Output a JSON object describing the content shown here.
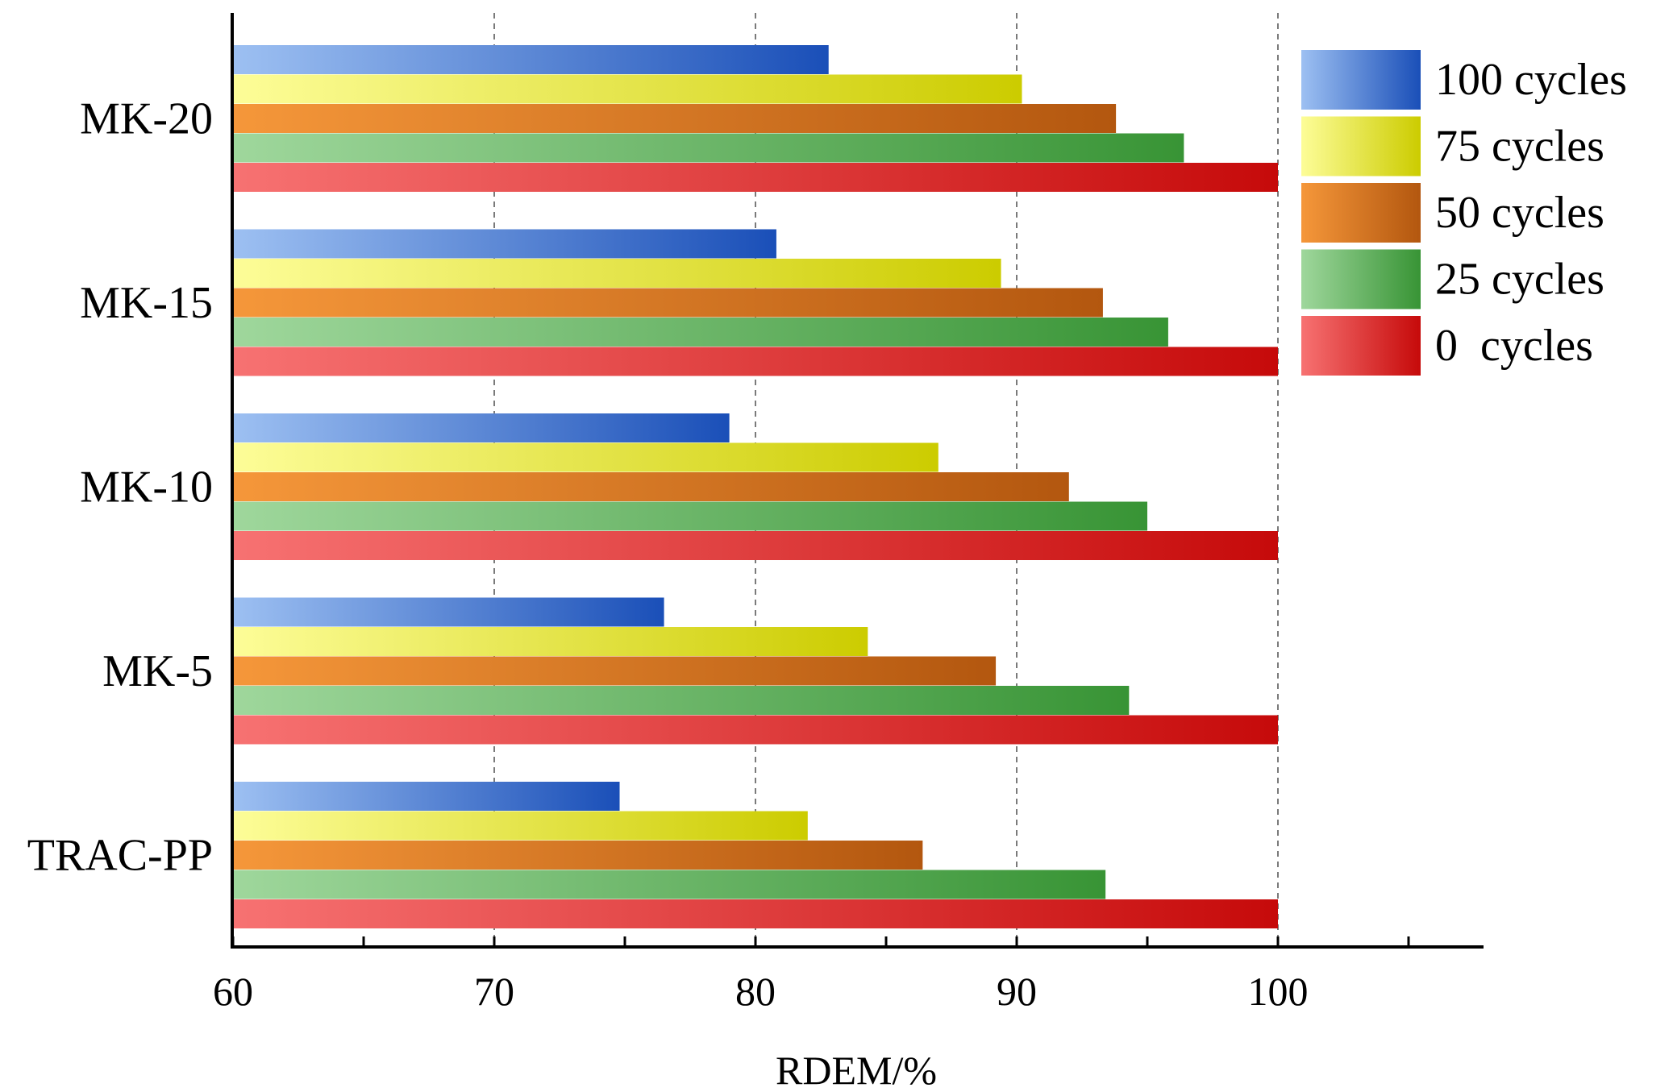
{
  "chart_data": {
    "type": "bar",
    "orientation": "horizontal",
    "title": "",
    "xlabel": "RDEM/%",
    "ylabel": "",
    "xlim": [
      60,
      107.5
    ],
    "x_ticks": [
      60,
      70,
      80,
      90,
      100
    ],
    "x_minor_ticks": [
      65,
      75,
      85,
      95,
      105
    ],
    "grid": "vertical dashed at major ticks",
    "legend_position": "top-right",
    "categories": [
      "MK-20",
      "MK-15",
      "MK-10",
      "MK-5",
      "TRAC-PP"
    ],
    "series": [
      {
        "name": "100 cycles",
        "legend_label": "100 cycles",
        "color_light": "#9dc0f2",
        "color_dark": "#1a4fb8",
        "values": [
          82.8,
          80.8,
          79.0,
          76.5,
          74.8
        ]
      },
      {
        "name": "75 cycles",
        "legend_label": "75 cycles",
        "color_light": "#fdfd98",
        "color_dark": "#cccc00",
        "values": [
          90.2,
          89.4,
          87.0,
          84.3,
          82.0
        ]
      },
      {
        "name": "50 cycles",
        "legend_label": "50 cycles",
        "color_light": "#f5973a",
        "color_dark": "#b3570f",
        "values": [
          93.8,
          93.3,
          92.0,
          89.2,
          86.4
        ]
      },
      {
        "name": "25 cycles",
        "legend_label": "25 cycles",
        "color_light": "#9fd79c",
        "color_dark": "#389435",
        "values": [
          96.4,
          95.8,
          95.0,
          94.3,
          93.4
        ]
      },
      {
        "name": "0 cycles",
        "legend_label": "0  cycles",
        "color_light": "#f77272",
        "color_dark": "#c60a0a",
        "values": [
          100,
          100,
          100,
          100,
          100
        ]
      }
    ]
  }
}
